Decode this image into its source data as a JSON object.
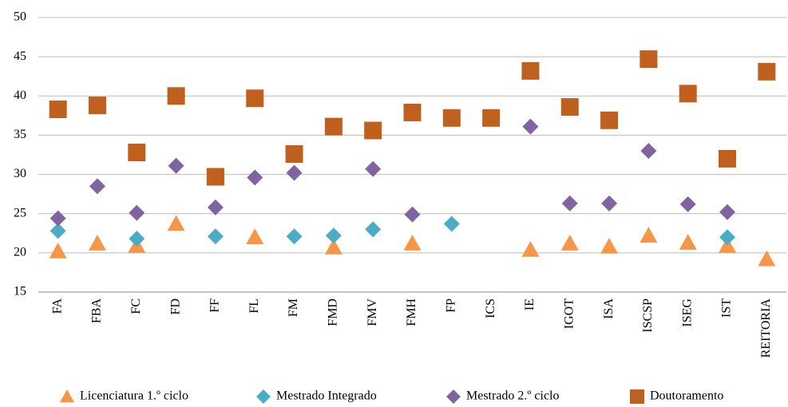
{
  "chart_data": {
    "type": "scatter",
    "categories": [
      "FA",
      "FBA",
      "FC",
      "FD",
      "FF",
      "FL",
      "FM",
      "FMD",
      "FMV",
      "FMH",
      "FP",
      "ICS",
      "IE",
      "IGOT",
      "ISA",
      "ISCSP",
      "ISEG",
      "IST",
      "REITORIA"
    ],
    "series": [
      {
        "name": "Licenciatura 1.º ciclo",
        "color": "#f79646",
        "marker": "triangle",
        "values": [
          20.2,
          21.2,
          20.9,
          23.7,
          null,
          22.0,
          null,
          20.7,
          null,
          21.2,
          null,
          null,
          20.4,
          21.2,
          20.8,
          22.2,
          21.3,
          20.9,
          19.2
        ]
      },
      {
        "name": "Mestrado Integrado",
        "color": "#4bacc6",
        "marker": "diamond",
        "values": [
          22.8,
          null,
          21.8,
          null,
          22.1,
          null,
          22.1,
          22.2,
          23.0,
          null,
          23.7,
          null,
          null,
          null,
          null,
          null,
          null,
          22.0,
          null
        ]
      },
      {
        "name": "Mestrado 2.º ciclo",
        "color": "#8064a2",
        "marker": "diamond",
        "values": [
          24.4,
          28.5,
          25.1,
          31.1,
          25.8,
          29.6,
          30.2,
          null,
          30.7,
          24.9,
          null,
          null,
          36.1,
          26.3,
          26.3,
          33.0,
          26.2,
          25.2,
          null
        ]
      },
      {
        "name": "Doutoramento",
        "color": "#c0601e",
        "marker": "square",
        "values": [
          38.3,
          38.8,
          32.8,
          40.0,
          29.7,
          39.7,
          32.6,
          36.1,
          35.6,
          37.9,
          37.2,
          37.2,
          43.2,
          38.6,
          36.9,
          44.7,
          40.3,
          32.0,
          43.1
        ]
      }
    ],
    "ylim": [
      15,
      50
    ],
    "yticks": [
      15,
      20,
      25,
      30,
      35,
      40,
      45,
      50
    ],
    "grid": true,
    "legend": "bottom"
  }
}
